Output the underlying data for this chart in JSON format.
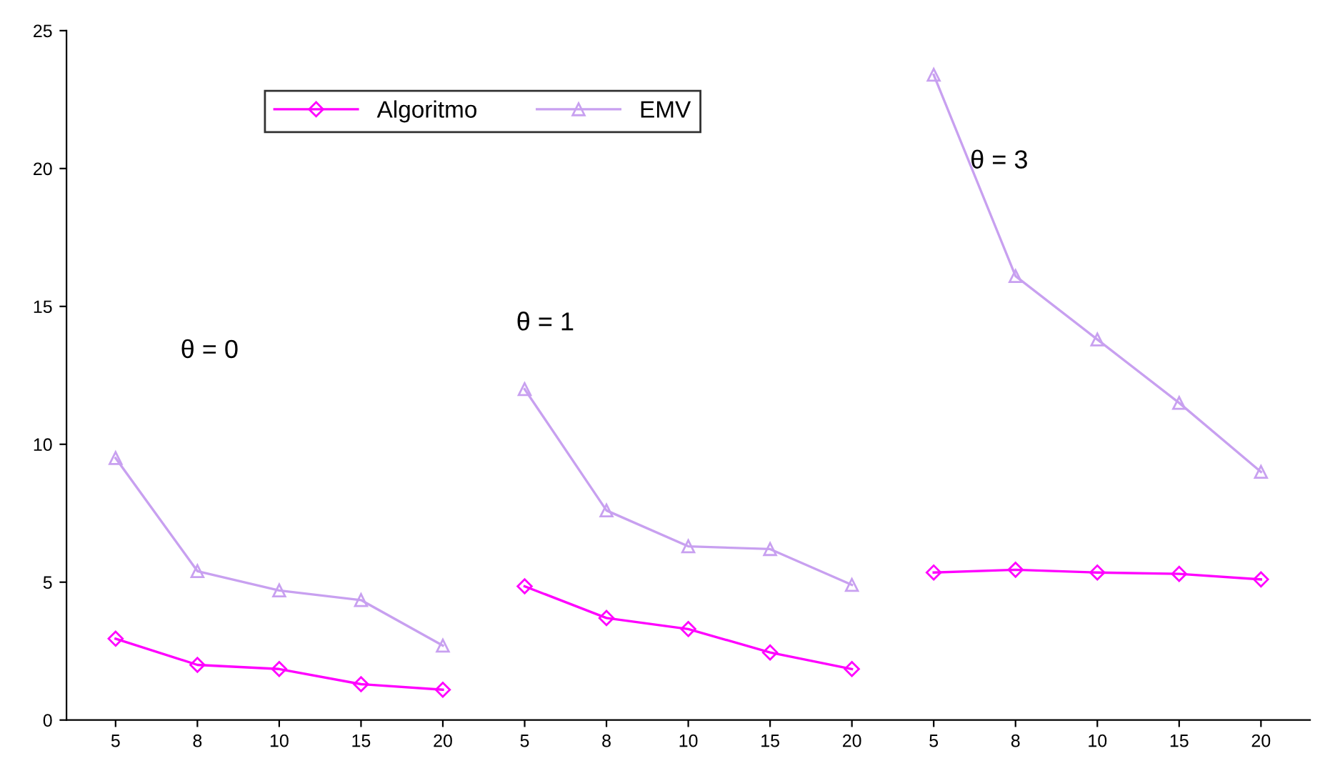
{
  "chart_data": {
    "type": "line",
    "categories": [
      "5",
      "8",
      "10",
      "15",
      "20",
      "5",
      "8",
      "10",
      "15",
      "20",
      "5",
      "8",
      "10",
      "15",
      "20"
    ],
    "series": [
      {
        "name": "Algoritmo",
        "color": "#ff00ff",
        "marker": "diamond",
        "values": [
          2.95,
          2.0,
          1.85,
          1.3,
          1.1,
          4.85,
          3.7,
          3.3,
          2.45,
          1.85,
          5.35,
          5.45,
          5.35,
          5.3,
          5.1
        ]
      },
      {
        "name": "EMV",
        "color": "#c8a0f0",
        "marker": "triangle",
        "values": [
          9.5,
          5.4,
          4.7,
          4.35,
          2.7,
          12.0,
          7.6,
          6.3,
          6.2,
          4.9,
          23.4,
          16.1,
          13.8,
          11.5,
          9.0
        ]
      }
    ],
    "annotations": [
      "θ = 0",
      "θ = 1",
      "θ = 3"
    ],
    "ylim": [
      0,
      25
    ],
    "yticks": [
      0,
      5,
      10,
      15,
      20,
      25
    ],
    "grid": false,
    "legend": "top left",
    "line_style": "solid"
  }
}
